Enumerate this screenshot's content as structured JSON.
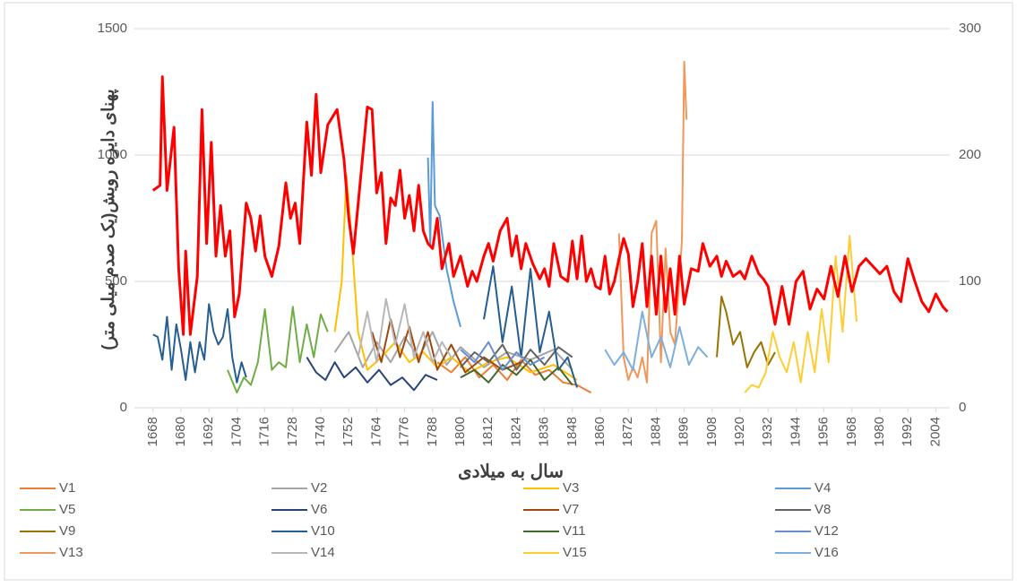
{
  "chart_data": {
    "type": "line",
    "y_label": "پهنای دایره رویش(یک صدم میلی متر)",
    "x_label": "سال به میلادی",
    "xlim": [
      1660,
      2010
    ],
    "xticks": [
      1668,
      1680,
      1692,
      1704,
      1716,
      1728,
      1740,
      1752,
      1764,
      1776,
      1788,
      1800,
      1812,
      1824,
      1836,
      1848,
      1860,
      1872,
      1884,
      1896,
      1908,
      1920,
      1932,
      1944,
      1956,
      1968,
      1980,
      1992,
      2004
    ],
    "ylim": [
      0,
      1500
    ],
    "yticks": [
      0,
      500,
      1000,
      1500
    ],
    "y2lim": [
      0,
      300
    ],
    "y2ticks": [
      0,
      100,
      200,
      300
    ],
    "grid": true,
    "series": [
      {
        "color": "#FF0000",
        "axis": "y2",
        "x": [
          1668,
          1671,
          1672,
          1674,
          1677,
          1679,
          1681,
          1682,
          1684,
          1687,
          1689,
          1691,
          1693,
          1695,
          1697,
          1699,
          1701,
          1703,
          1705,
          1708,
          1710,
          1712,
          1714,
          1716,
          1719,
          1722,
          1725,
          1727,
          1729,
          1731,
          1734,
          1736,
          1738,
          1740,
          1743,
          1745,
          1747,
          1750,
          1752,
          1754,
          1757,
          1760,
          1762,
          1764,
          1766,
          1768,
          1770,
          1772,
          1774,
          1776,
          1778,
          1780,
          1782,
          1784,
          1786,
          1788,
          1790,
          1792,
          1795,
          1797,
          1800,
          1803,
          1805,
          1807,
          1810,
          1812,
          1814,
          1817,
          1820,
          1822,
          1824,
          1826,
          1828,
          1831,
          1834,
          1836,
          1838,
          1840,
          1843,
          1846,
          1848,
          1850,
          1852,
          1854,
          1856,
          1858,
          1860,
          1862,
          1864,
          1866,
          1868,
          1870,
          1872,
          1874,
          1876,
          1878,
          1880,
          1882,
          1884,
          1886,
          1888,
          1890,
          1892,
          1894,
          1896,
          1899,
          1902,
          1904,
          1907,
          1910,
          1912,
          1914,
          1917,
          1920,
          1922,
          1925,
          1928,
          1930,
          1932,
          1935,
          1938,
          1941,
          1944,
          1947,
          1950,
          1953,
          1956,
          1959,
          1962,
          1965,
          1968,
          1971,
          1974,
          1977,
          1980,
          1983,
          1986,
          1989,
          1992,
          1995,
          1998,
          2001,
          2004,
          2007,
          2009
        ],
        "values": [
          172,
          176,
          262,
          172,
          222,
          110,
          58,
          124,
          58,
          104,
          236,
          130,
          210,
          120,
          160,
          120,
          140,
          72,
          90,
          162,
          150,
          124,
          152,
          120,
          104,
          128,
          178,
          150,
          162,
          130,
          226,
          184,
          248,
          186,
          224,
          230,
          236,
          196,
          150,
          122,
          180,
          238,
          236,
          170,
          186,
          130,
          166,
          160,
          188,
          150,
          168,
          140,
          176,
          140,
          130,
          126,
          150,
          110,
          130,
          104,
          120,
          96,
          108,
          100,
          120,
          130,
          116,
          140,
          150,
          120,
          136,
          110,
          130,
          114,
          102,
          110,
          96,
          130,
          104,
          100,
          132,
          102,
          136,
          100,
          110,
          96,
          94,
          120,
          90,
          100,
          118,
          134,
          122,
          80,
          100,
          130,
          80,
          120,
          74,
          120,
          76,
          110,
          74,
          120,
          82,
          110,
          108,
          130,
          112,
          120,
          104,
          116,
          104,
          108,
          102,
          120,
          106,
          102,
          96,
          66,
          96,
          66,
          100,
          108,
          78,
          94,
          86,
          112,
          88,
          120,
          92,
          112,
          118,
          112,
          106,
          112,
          92,
          84,
          118,
          100,
          84,
          76,
          90,
          80,
          76
        ]
      },
      {
        "name": "V1",
        "color": "#ED7D31",
        "x": [
          1790,
          1796,
          1802,
          1808,
          1814,
          1820,
          1826,
          1832,
          1838,
          1844,
          1850,
          1856
        ],
        "values": [
          180,
          140,
          200,
          120,
          170,
          110,
          190,
          130,
          150,
          100,
          90,
          60
        ]
      },
      {
        "name": "V2",
        "color": "#A5A5A5",
        "x": [
          1746,
          1752,
          1758,
          1764,
          1770,
          1776,
          1782,
          1788,
          1794,
          1800,
          1810,
          1820,
          1830,
          1840,
          1848
        ],
        "values": [
          220,
          300,
          160,
          260,
          180,
          280,
          200,
          300,
          170,
          240,
          160,
          220,
          190,
          230,
          150
        ]
      },
      {
        "name": "V3",
        "color": "#FFC000",
        "x": [
          1746,
          1749,
          1751,
          1753,
          1756,
          1760,
          1766,
          1772,
          1778,
          1784,
          1790,
          1796,
          1804,
          1812,
          1820,
          1830,
          1840,
          1850
        ],
        "values": [
          300,
          500,
          920,
          700,
          300,
          150,
          200,
          260,
          180,
          220,
          160,
          200,
          140,
          180,
          200,
          140,
          170,
          110
        ]
      },
      {
        "name": "V4",
        "color": "#5B9BD5",
        "x": [
          1786,
          1787,
          1788,
          1789,
          1791,
          1794,
          1797,
          1800
        ],
        "values": [
          990,
          640,
          1210,
          800,
          760,
          550,
          420,
          320
        ]
      },
      {
        "name": "V5",
        "color": "#70AD47",
        "x": [
          1700,
          1704,
          1707,
          1710,
          1713,
          1716,
          1719,
          1722,
          1725,
          1728,
          1731,
          1734,
          1737,
          1740,
          1743
        ],
        "values": [
          150,
          60,
          120,
          90,
          180,
          390,
          150,
          180,
          160,
          400,
          180,
          330,
          200,
          370,
          300
        ]
      },
      {
        "name": "V6",
        "color": "#264478",
        "x": [
          1734,
          1738,
          1742,
          1746,
          1750,
          1755,
          1760,
          1765,
          1770,
          1775,
          1780,
          1785,
          1790
        ],
        "values": [
          200,
          140,
          110,
          180,
          120,
          160,
          100,
          150,
          90,
          120,
          70,
          130,
          110
        ]
      },
      {
        "name": "V7",
        "color": "#9E480E",
        "x": [
          1762,
          1766,
          1770,
          1774,
          1778,
          1782,
          1786,
          1790,
          1796,
          1802,
          1810,
          1818,
          1826
        ],
        "values": [
          300,
          180,
          350,
          200,
          320,
          180,
          300,
          150,
          250,
          140,
          200,
          150,
          180
        ]
      },
      {
        "name": "V8",
        "color": "#636363",
        "x": [
          1800,
          1806,
          1812,
          1818,
          1824,
          1830,
          1836,
          1842,
          1848
        ],
        "values": [
          160,
          220,
          180,
          250,
          150,
          230,
          170,
          240,
          200
        ]
      },
      {
        "name": "V9",
        "color": "#997300",
        "x": [
          1910,
          1912,
          1914,
          1917,
          1920,
          1923,
          1926,
          1929,
          1932,
          1935
        ],
        "values": [
          200,
          440,
          380,
          250,
          300,
          160,
          220,
          260,
          170,
          220
        ]
      },
      {
        "name": "V10",
        "color": "#255E91",
        "x": [
          1668,
          1670,
          1672,
          1674,
          1676,
          1678,
          1680,
          1682,
          1684,
          1686,
          1688,
          1690,
          1692,
          1694,
          1696,
          1698,
          1700,
          1702,
          1704,
          1706,
          1708,
          1760,
          1810,
          1814,
          1818,
          1822,
          1826,
          1830,
          1834,
          1838,
          1842,
          1846,
          1850
        ],
        "values": [
          290,
          280,
          190,
          360,
          150,
          330,
          230,
          110,
          260,
          140,
          260,
          190,
          410,
          300,
          250,
          280,
          390,
          200,
          100,
          180,
          120,
          null,
          350,
          560,
          260,
          480,
          200,
          550,
          220,
          380,
          150,
          200,
          80
        ]
      },
      {
        "name": "V11",
        "color": "#43682B",
        "x": [
          1800,
          1806,
          1812,
          1818,
          1824,
          1830,
          1836,
          1842,
          1848
        ],
        "values": [
          120,
          150,
          100,
          170,
          130,
          190,
          110,
          160,
          90
        ]
      },
      {
        "name": "V12",
        "color": "#698ED0",
        "x": [
          1800,
          1806,
          1812,
          1818,
          1824,
          1830,
          1836
        ],
        "values": [
          230,
          180,
          260,
          150,
          220,
          170,
          200
        ]
      },
      {
        "name": "V13",
        "color": "#F1975A",
        "x": [
          1868,
          1870,
          1872,
          1874,
          1876,
          1878,
          1880,
          1882,
          1884,
          1886,
          1888,
          1890,
          1892,
          1894,
          1895,
          1896,
          1897
        ],
        "values": [
          690,
          200,
          110,
          160,
          120,
          200,
          100,
          690,
          740,
          180,
          630,
          300,
          250,
          520,
          660,
          1370,
          1140
        ]
      },
      {
        "name": "V14",
        "color": "#B7B7B7",
        "x": [
          1756,
          1760,
          1764,
          1768,
          1772,
          1776,
          1780,
          1784,
          1788,
          1792,
          1796
        ],
        "values": [
          200,
          380,
          180,
          430,
          250,
          410,
          200,
          300,
          180,
          260,
          200
        ]
      },
      {
        "name": "V15",
        "color": "#FFCD33",
        "x": [
          1922,
          1925,
          1928,
          1931,
          1934,
          1937,
          1940,
          1943,
          1946,
          1949,
          1952,
          1955,
          1958,
          1961,
          1964,
          1967,
          1970
        ],
        "values": [
          60,
          90,
          80,
          140,
          300,
          200,
          140,
          260,
          100,
          300,
          140,
          390,
          180,
          600,
          300,
          680,
          340
        ]
      },
      {
        "name": "V16",
        "color": "#7CAFDD",
        "x": [
          1862,
          1866,
          1870,
          1874,
          1878,
          1882,
          1886,
          1890,
          1894,
          1898,
          1902,
          1906
        ],
        "values": [
          230,
          170,
          220,
          150,
          380,
          200,
          280,
          160,
          320,
          170,
          240,
          200
        ]
      }
    ]
  }
}
